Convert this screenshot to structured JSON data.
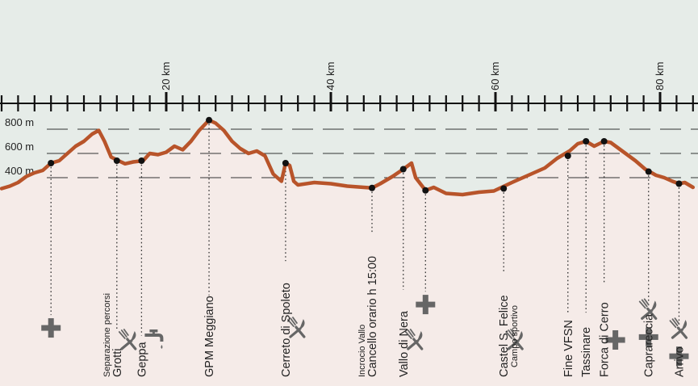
{
  "chart_data": {
    "type": "area",
    "title": "",
    "xlabel": "",
    "ylabel": "",
    "x_unit": "km",
    "xlim": [
      0,
      84
    ],
    "ylim": [
      0,
      1000
    ],
    "x_tick_labels": [
      {
        "km": 20,
        "label": "20 km"
      },
      {
        "km": 40,
        "label": "40 km"
      },
      {
        "km": 60,
        "label": "60 km"
      },
      {
        "km": 80,
        "label": "80 km"
      }
    ],
    "x_minor_ticks_every_km": 2,
    "elevation_gridlines": [
      {
        "m": 400,
        "label": "400 m"
      },
      {
        "m": 600,
        "label": "600 m"
      },
      {
        "m": 800,
        "label": "800 m"
      }
    ],
    "profile": [
      {
        "km": 0,
        "m": 310
      },
      {
        "km": 1,
        "m": 330
      },
      {
        "km": 2,
        "m": 360
      },
      {
        "km": 3,
        "m": 410
      },
      {
        "km": 4,
        "m": 440
      },
      {
        "km": 5,
        "m": 460
      },
      {
        "km": 6,
        "m": 520
      },
      {
        "km": 7,
        "m": 540
      },
      {
        "km": 8,
        "m": 600
      },
      {
        "km": 9,
        "m": 660
      },
      {
        "km": 10,
        "m": 700
      },
      {
        "km": 11,
        "m": 760
      },
      {
        "km": 11.8,
        "m": 790
      },
      {
        "km": 12.5,
        "m": 700
      },
      {
        "km": 13.3,
        "m": 570
      },
      {
        "km": 14.2,
        "m": 540
      },
      {
        "km": 15,
        "m": 515
      },
      {
        "km": 16,
        "m": 530
      },
      {
        "km": 17.2,
        "m": 540
      },
      {
        "km": 18,
        "m": 600
      },
      {
        "km": 19,
        "m": 590
      },
      {
        "km": 20,
        "m": 610
      },
      {
        "km": 21,
        "m": 660
      },
      {
        "km": 22,
        "m": 630
      },
      {
        "km": 23,
        "m": 700
      },
      {
        "km": 24,
        "m": 790
      },
      {
        "km": 25.2,
        "m": 875
      },
      {
        "km": 26,
        "m": 850
      },
      {
        "km": 27,
        "m": 790
      },
      {
        "km": 28,
        "m": 700
      },
      {
        "km": 29,
        "m": 640
      },
      {
        "km": 30,
        "m": 600
      },
      {
        "km": 31,
        "m": 620
      },
      {
        "km": 32,
        "m": 580
      },
      {
        "km": 33,
        "m": 430
      },
      {
        "km": 34,
        "m": 370
      },
      {
        "km": 34.5,
        "m": 520
      },
      {
        "km": 35,
        "m": 500
      },
      {
        "km": 35.5,
        "m": 370
      },
      {
        "km": 36,
        "m": 340
      },
      {
        "km": 38,
        "m": 360
      },
      {
        "km": 40,
        "m": 350
      },
      {
        "km": 42,
        "m": 330
      },
      {
        "km": 44,
        "m": 320
      },
      {
        "km": 45,
        "m": 315
      },
      {
        "km": 46,
        "m": 350
      },
      {
        "km": 47.5,
        "m": 410
      },
      {
        "km": 48.8,
        "m": 470
      },
      {
        "km": 49.8,
        "m": 520
      },
      {
        "km": 50.3,
        "m": 400
      },
      {
        "km": 51.5,
        "m": 295
      },
      {
        "km": 52.5,
        "m": 320
      },
      {
        "km": 54,
        "m": 270
      },
      {
        "km": 56,
        "m": 260
      },
      {
        "km": 58,
        "m": 280
      },
      {
        "km": 59.8,
        "m": 290
      },
      {
        "km": 62,
        "m": 360
      },
      {
        "km": 64,
        "m": 420
      },
      {
        "km": 66,
        "m": 480
      },
      {
        "km": 67.5,
        "m": 560
      },
      {
        "km": 69,
        "m": 620
      },
      {
        "km": 70,
        "m": 680
      },
      {
        "km": 71,
        "m": 700
      },
      {
        "km": 72,
        "m": 660
      },
      {
        "km": 73.2,
        "m": 700
      },
      {
        "km": 74,
        "m": 690
      },
      {
        "km": 75,
        "m": 640
      },
      {
        "km": 77,
        "m": 540
      },
      {
        "km": 78.2,
        "m": 470
      },
      {
        "km": 79.5,
        "m": 420
      },
      {
        "km": 80.5,
        "m": 400
      },
      {
        "km": 81.5,
        "m": 370
      },
      {
        "km": 82.3,
        "m": 350
      },
      {
        "km": 83,
        "m": 360
      },
      {
        "km": 84,
        "m": 320
      }
    ],
    "waypoints": [
      {
        "km": 6.0,
        "m": 520,
        "label": "",
        "sublabel": "",
        "icons": [
          "first-aid-icon"
        ],
        "icon_depth": 0.78
      },
      {
        "km": 14.0,
        "m": 540,
        "label": "Grotti",
        "sublabel": "Separazione percorsi",
        "icons": [
          "fork-knife-icon"
        ],
        "icon_depth": 1
      },
      {
        "km": 17.0,
        "m": 540,
        "label": "Geppa",
        "sublabel": "",
        "icons": [
          "water-tap-icon"
        ],
        "icon_depth": 1
      },
      {
        "km": 25.2,
        "m": 875,
        "label": "GPM Meggiano",
        "sublabel": "",
        "icons": [],
        "icon_depth": 1
      },
      {
        "km": 34.5,
        "m": 520,
        "label": "Cerreto di Spoleto",
        "sublabel": "",
        "icons": [
          "fork-knife-icon"
        ],
        "icon_depth": 0.78
      },
      {
        "km": 45.0,
        "m": 315,
        "label": "Cancello orario h 15:00",
        "sublabel": "Incrocio Vallo",
        "icons": [],
        "icon_depth": 1
      },
      {
        "km": 48.8,
        "m": 470,
        "label": "Vallo di Nera",
        "sublabel": "",
        "icons": [
          "fork-knife-icon"
        ],
        "icon_depth": 0.88
      },
      {
        "km": 51.5,
        "m": 295,
        "label": "",
        "sublabel": "",
        "icons": [
          "first-aid-icon"
        ],
        "icon_depth": 0.6
      },
      {
        "km": 61.0,
        "m": 310,
        "label": "Castel S. Felice",
        "sublabel": "Campo sportivo",
        "icons": [
          "fork-knife-icon"
        ],
        "icon_depth": 0.84
      },
      {
        "km": 68.8,
        "m": 580,
        "label": "Fine VFSN",
        "sublabel": "",
        "icons": [],
        "icon_depth": 1
      },
      {
        "km": 71.0,
        "m": 700,
        "label": "Tassinare",
        "sublabel": "",
        "icons": [],
        "icon_depth": 1
      },
      {
        "km": 73.2,
        "m": 700,
        "label": "Forca di Cerro",
        "sublabel": "",
        "icons": [
          "first-aid-icon"
        ],
        "icon_depth": 0.86
      },
      {
        "km": 78.6,
        "m": 450,
        "label": "Caprareccia",
        "sublabel": "",
        "icons": [
          "fork-knife-icon",
          "first-aid-icon"
        ],
        "icon_depth": 0.82
      },
      {
        "km": 82.3,
        "m": 350,
        "label": "Arrivo",
        "sublabel": "",
        "icons": [
          "fork-knife-icon",
          "first-aid-icon"
        ],
        "icon_depth": 0.92
      }
    ],
    "colors": {
      "sky": "#e6ece8",
      "ground": "#f5ebe8",
      "profile_line": "#b8542a",
      "icons": "#666666",
      "text": "#222222"
    }
  }
}
